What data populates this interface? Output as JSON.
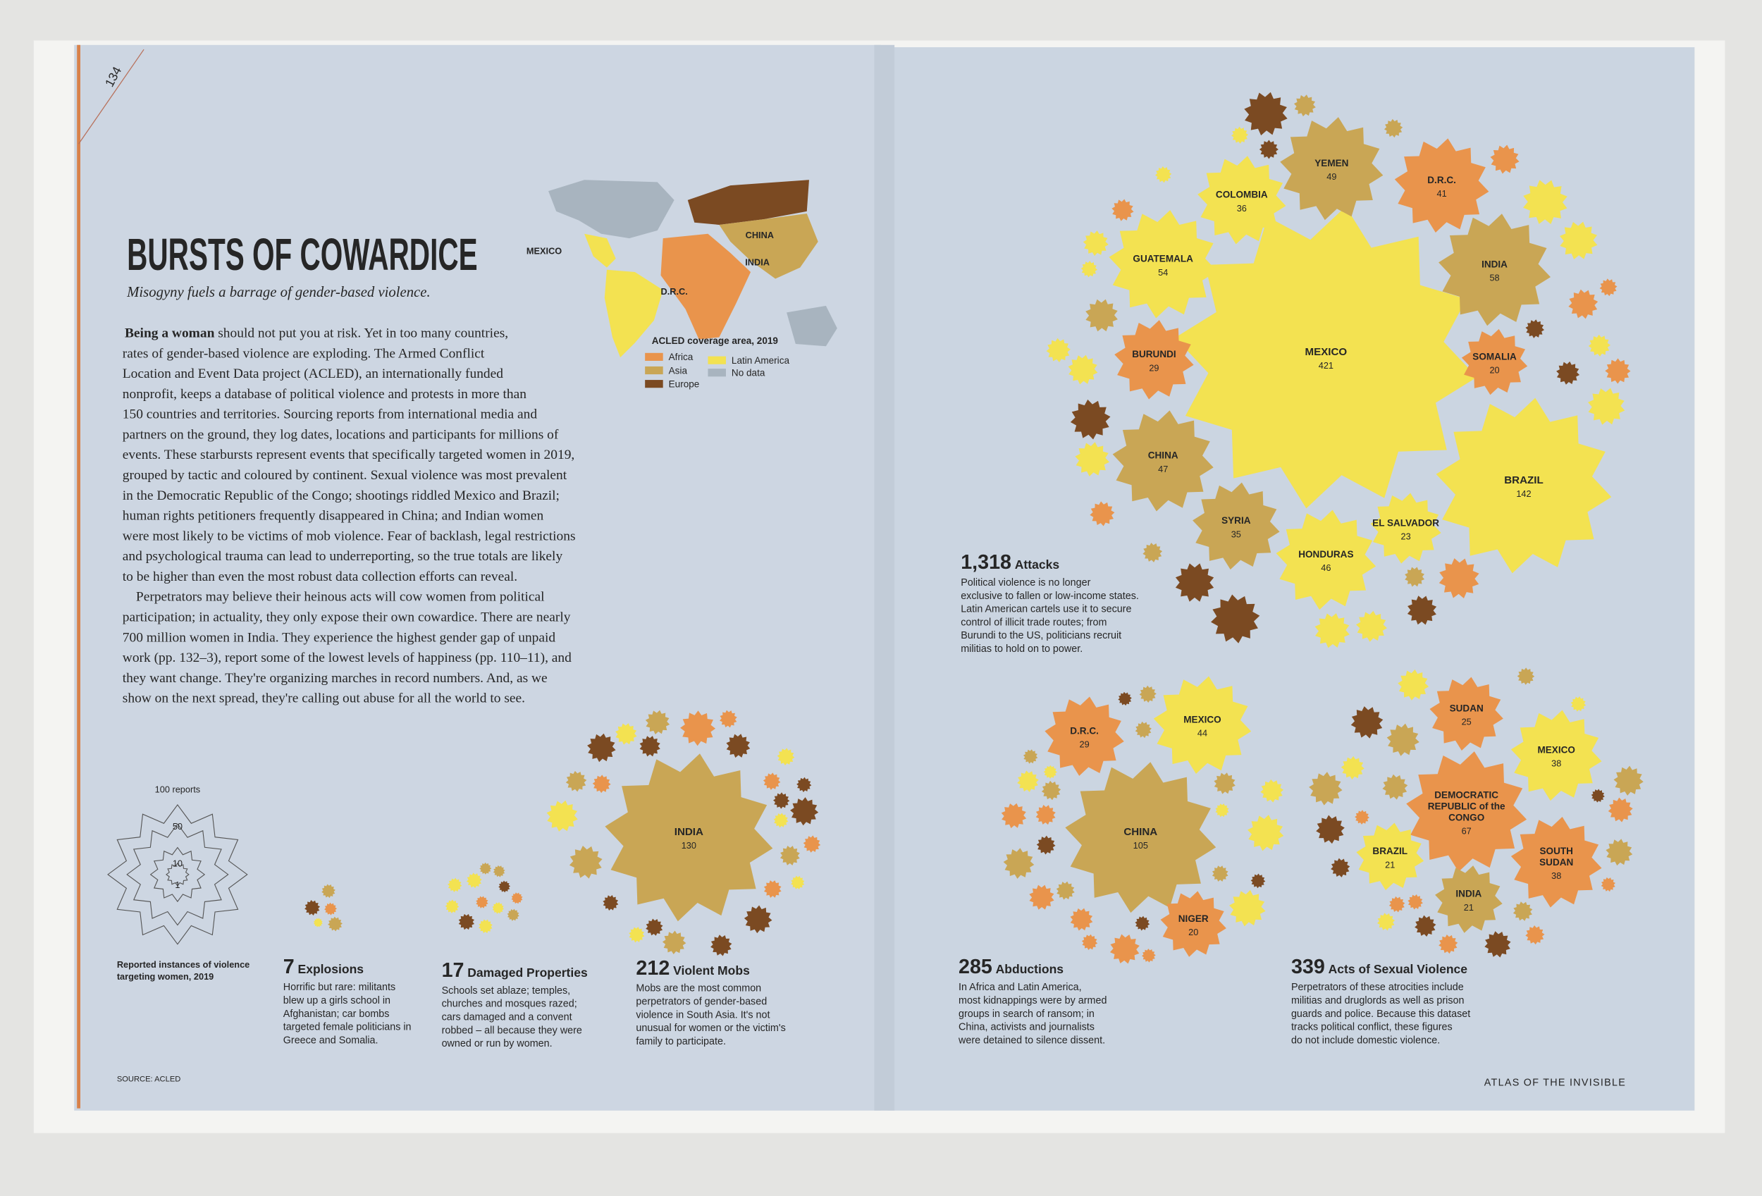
{
  "left_page": {
    "page_number": "134",
    "title": "BURSTS OF COWARDICE",
    "subtitle": "Misogyny fuels a barrage of gender-based violence.",
    "lead": "Being a woman",
    "body": [
      " should not put you at risk. Yet in too many countries,",
      "rates of gender-based violence are exploding. The Armed Conflict",
      "Location and Event Data project (ACLED), an internationally funded",
      "nonprofit, keeps a database of political violence and protests in more than",
      "150 countries and territories. Sourcing reports from international media and",
      "partners on the ground, they log dates, locations and participants for millions of",
      "events. These starbursts represent events that specifically targeted women in 2019,",
      "grouped by tactic and coloured by continent. Sexual violence was most prevalent",
      "in the Democratic Republic of the Congo; shootings riddled Mexico and Brazil;",
      "human rights petitioners frequently disappeared in China; and Indian women",
      "were most likely to be victims of mob violence. Fear of backlash, legal restrictions",
      "and psychological trauma can lead to underreporting, so the true totals are likely",
      "to be higher than even the most robust data collection efforts can reveal.",
      "Perpetrators may believe their heinous acts will cow women from political",
      "participation; in actuality, they only expose their own cowardice. There are nearly",
      "700 million women in India. They experience the highest gender gap of unpaid",
      "work (pp. 132–3), report some of the lowest levels of happiness (pp. 110–11), and",
      "they want change. They're organizing marches in record numbers. And, as we",
      "show on the next spread, they're calling out abuse for all the world to see."
    ],
    "map": {
      "labels": [
        "MEXICO",
        "CHINA",
        "INDIA",
        "D.R.C."
      ],
      "legend_title": "ACLED coverage area, 2019",
      "legend": [
        {
          "name": "Africa",
          "color": "#e9944c"
        },
        {
          "name": "Asia",
          "color": "#c9a655"
        },
        {
          "name": "Europe",
          "color": "#7b4a22"
        },
        {
          "name": "Latin America",
          "color": "#f3e251"
        },
        {
          "name": "No data",
          "color": "#a8b4bf"
        }
      ]
    },
    "scale": {
      "labels": [
        "100 reports",
        "50",
        "10",
        "1"
      ],
      "caption": [
        "Reported instances of violence",
        "targeting women, 2019"
      ]
    },
    "panels": [
      {
        "count": "7",
        "name": "Explosions",
        "text": [
          "Horrific but rare: militants",
          "blew up a girls school in",
          "Afghanistan; car bombs",
          "targeted female politicians in",
          "Greece and Somalia."
        ]
      },
      {
        "count": "17",
        "name": "Damaged Properties",
        "text": [
          "Schools set ablaze; temples,",
          "churches and mosques razed;",
          "cars damaged and a convent",
          "robbed – all because they were",
          "owned or run by women."
        ]
      },
      {
        "count": "212",
        "name": "Violent Mobs",
        "text": [
          "Mobs are the most common",
          "perpetrators of gender-based",
          "violence in South Asia. It's not",
          "unusual for women or the victim's",
          "family to participate."
        ],
        "bursts": [
          {
            "name": [
              "INDIA"
            ],
            "value": 130,
            "color": "#c9a655"
          }
        ]
      }
    ],
    "source": "SOURCE: ACLED"
  },
  "right_page": {
    "panels": [
      {
        "count": "1,318",
        "name": "Attacks",
        "text": [
          "Political violence is no longer",
          "exclusive to fallen or low-income states.",
          "Latin American cartels use it to secure",
          "control of illicit trade routes; from",
          "Burundi to the US, politicians recruit",
          "militias to hold on to power."
        ],
        "bursts": [
          {
            "name": [
              "MEXICO"
            ],
            "value": 421,
            "color": "#f3e251"
          },
          {
            "name": [
              "BRAZIL"
            ],
            "value": 142,
            "color": "#f3e251"
          },
          {
            "name": [
              "INDIA"
            ],
            "value": 58,
            "color": "#c9a655"
          },
          {
            "name": [
              "D.R.C."
            ],
            "value": 41,
            "color": "#e9944c"
          },
          {
            "name": [
              "YEMEN"
            ],
            "value": 49,
            "color": "#c9a655"
          },
          {
            "name": [
              "COLOMBIA"
            ],
            "value": 36,
            "color": "#f3e251"
          },
          {
            "name": [
              "GUATEMALA"
            ],
            "value": 54,
            "color": "#f3e251"
          },
          {
            "name": [
              "BURUNDI"
            ],
            "value": 29,
            "color": "#e9944c"
          },
          {
            "name": [
              "CHINA"
            ],
            "value": 47,
            "color": "#c9a655"
          },
          {
            "name": [
              "SYRIA"
            ],
            "value": 35,
            "color": "#c9a655"
          },
          {
            "name": [
              "HONDURAS"
            ],
            "value": 46,
            "color": "#f3e251"
          },
          {
            "name": [
              "EL SALVADOR"
            ],
            "value": 23,
            "color": "#f3e251"
          },
          {
            "name": [
              "SOMALIA"
            ],
            "value": 20,
            "color": "#e9944c"
          }
        ]
      },
      {
        "count": "285",
        "name": "Abductions",
        "text": [
          "In Africa and Latin America,",
          "most kidnappings were by armed",
          "groups in search of ransom; in",
          "China, activists and journalists",
          "were detained to silence dissent."
        ],
        "bursts": [
          {
            "name": [
              "D.R.C."
            ],
            "value": 29,
            "color": "#e9944c"
          },
          {
            "name": [
              "MEXICO"
            ],
            "value": 44,
            "color": "#f3e251"
          },
          {
            "name": [
              "CHINA"
            ],
            "value": 105,
            "color": "#c9a655"
          },
          {
            "name": [
              "NIGER"
            ],
            "value": 20,
            "color": "#e9944c"
          }
        ]
      },
      {
        "count": "339",
        "name": "Acts of Sexual Violence",
        "text": [
          "Perpetrators of these atrocities include",
          "militias and druglords as well as prison",
          "guards and police. Because this dataset",
          "tracks political conflict, these figures",
          "do not include domestic violence."
        ],
        "bursts": [
          {
            "name": [
              "SUDAN"
            ],
            "value": 25,
            "color": "#e9944c"
          },
          {
            "name": [
              "MEXICO"
            ],
            "value": 38,
            "color": "#f3e251"
          },
          {
            "name": [
              "DEMOCRATIC",
              "REPUBLIC of the",
              "CONGO"
            ],
            "value": 67,
            "color": "#e9944c"
          },
          {
            "name": [
              "BRAZIL"
            ],
            "value": 21,
            "color": "#f3e251"
          },
          {
            "name": [
              "SOUTH",
              "SUDAN"
            ],
            "value": 38,
            "color": "#e9944c"
          },
          {
            "name": [
              "INDIA"
            ],
            "value": 21,
            "color": "#c9a655"
          }
        ]
      }
    ],
    "footer": "ATLAS OF THE INVISIBLE"
  }
}
